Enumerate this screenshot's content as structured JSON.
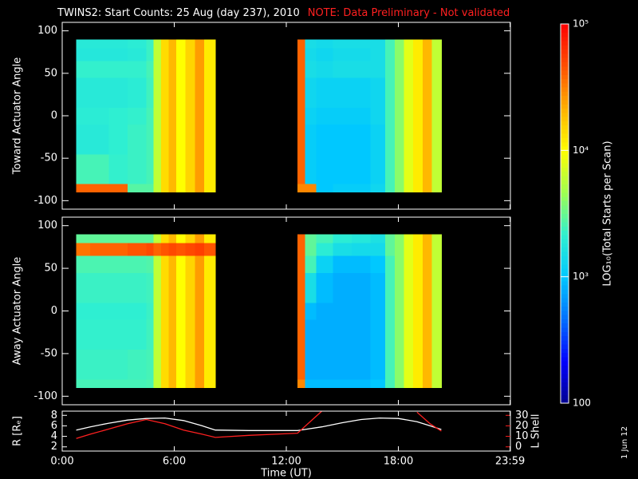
{
  "chart_data": [
    {
      "type": "heatmap",
      "title": "TWINS2: Start Counts: 25 Aug (day 237), 2010",
      "note": "NOTE: Data Preliminary - Not validated",
      "ylabel": "Toward Actuator Angle",
      "x_bins": [
        0.75,
        1.5,
        2.5,
        3.5,
        4.5,
        4.9,
        5.3,
        5.7,
        6.1,
        6.6,
        7.1,
        7.6,
        8.2,
        12.6,
        13.0,
        13.6,
        14.5,
        15.5,
        16.5,
        17.3,
        17.8,
        18.3,
        18.8,
        19.3,
        19.8,
        20.3
      ],
      "y_bins": [
        -90,
        -80,
        -45,
        -10,
        10,
        45,
        65,
        80,
        90
      ],
      "values": [
        [
          40000,
          40000,
          40000,
          2800,
          2800,
          6000,
          14000,
          20000,
          10000,
          15000,
          25000,
          12000,
          null,
          30000,
          30000,
          1000,
          1100,
          1100,
          1300,
          2500,
          4000,
          8000,
          12000,
          20000,
          6000
        ],
        [
          2500,
          2500,
          2200,
          2300,
          2500,
          6000,
          14000,
          20000,
          10000,
          15000,
          25000,
          12000,
          null,
          40000,
          1100,
          1000,
          1000,
          1000,
          1200,
          2500,
          4000,
          8000,
          12000,
          20000,
          6000
        ],
        [
          1900,
          1900,
          2100,
          2300,
          2500,
          6000,
          14000,
          20000,
          10000,
          15000,
          25000,
          12000,
          null,
          40000,
          1100,
          1000,
          1000,
          1000,
          1200,
          2500,
          4000,
          8000,
          12000,
          20000,
          6000
        ],
        [
          2000,
          2000,
          2100,
          2200,
          2500,
          6000,
          14000,
          20000,
          10000,
          15000,
          25000,
          12000,
          null,
          40000,
          1200,
          1100,
          1100,
          1100,
          1300,
          2500,
          4000,
          8000,
          12000,
          20000,
          6000
        ],
        [
          1900,
          1900,
          1900,
          2000,
          2400,
          6000,
          14000,
          20000,
          10000,
          15000,
          25000,
          12000,
          null,
          40000,
          1300,
          1200,
          1200,
          1200,
          1300,
          2500,
          4000,
          8000,
          12000,
          20000,
          6000
        ],
        [
          2200,
          2200,
          2200,
          2200,
          2500,
          6000,
          14000,
          20000,
          10000,
          15000,
          25000,
          12000,
          null,
          40000,
          1500,
          1400,
          1500,
          1500,
          1500,
          2500,
          4000,
          8000,
          12000,
          20000,
          6000
        ],
        [
          1800,
          1800,
          1800,
          1900,
          2300,
          6000,
          14000,
          20000,
          10000,
          15000,
          25000,
          12000,
          null,
          40000,
          1400,
          1300,
          1400,
          1400,
          1500,
          2500,
          4000,
          8000,
          12000,
          20000,
          6000
        ],
        [
          1900,
          1900,
          1900,
          2000,
          2300,
          6000,
          14000,
          20000,
          10000,
          15000,
          25000,
          12000,
          null,
          40000,
          1500,
          1400,
          1500,
          1500,
          1500,
          2500,
          4000,
          8000,
          12000,
          20000,
          6000
        ]
      ],
      "ylim": [
        -110,
        110
      ],
      "yticks": [
        -100,
        -50,
        0,
        50,
        100
      ],
      "colorbar": {
        "label": "LOG₁₀(Total Starts per Scan)",
        "zlim": [
          100,
          100000
        ],
        "log": true,
        "ticks": [
          {
            "value": 100000,
            "label": "10⁵"
          },
          {
            "value": 10000,
            "label": "10⁴"
          },
          {
            "value": 1000,
            "label": "10³"
          },
          100
        ],
        "colormap": [
          "#000090",
          "#0000ff",
          "#0070ff",
          "#00c8ff",
          "#30f0d0",
          "#a0ff50",
          "#ffff00",
          "#ffb000",
          "#ff5000",
          "#ff0000"
        ]
      }
    },
    {
      "type": "heatmap",
      "ylabel": "Away Actuator Angle",
      "x_bins": [
        0.75,
        1.5,
        2.5,
        3.5,
        4.5,
        4.9,
        5.3,
        5.7,
        6.1,
        6.6,
        7.1,
        7.6,
        8.2,
        12.6,
        13.0,
        13.6,
        14.5,
        15.5,
        16.5,
        17.3,
        17.8,
        18.3,
        18.8,
        19.3,
        19.8,
        20.3
      ],
      "y_bins": [
        -90,
        -80,
        -45,
        -10,
        10,
        45,
        65,
        80,
        90
      ],
      "values": [
        [
          2500,
          2500,
          2500,
          2500,
          2600,
          6000,
          14000,
          20000,
          10000,
          15000,
          25000,
          12000,
          null,
          30000,
          900,
          900,
          900,
          900,
          1000,
          2500,
          4000,
          8000,
          12000,
          20000,
          6000
        ],
        [
          2300,
          2300,
          2300,
          2400,
          2500,
          6000,
          14000,
          20000,
          10000,
          15000,
          25000,
          12000,
          null,
          40000,
          800,
          800,
          800,
          800,
          900,
          2500,
          4000,
          8000,
          12000,
          20000,
          6000
        ],
        [
          2200,
          2200,
          2200,
          2200,
          2400,
          6000,
          14000,
          20000,
          10000,
          15000,
          25000,
          12000,
          null,
          40000,
          800,
          800,
          800,
          800,
          900,
          2500,
          4000,
          8000,
          12000,
          20000,
          6000
        ],
        [
          2100,
          2100,
          2100,
          2100,
          2300,
          6000,
          14000,
          20000,
          10000,
          15000,
          25000,
          12000,
          null,
          40000,
          900,
          800,
          800,
          800,
          900,
          2500,
          4000,
          8000,
          12000,
          20000,
          6000
        ],
        [
          2300,
          2300,
          2300,
          2300,
          2400,
          6000,
          14000,
          20000,
          10000,
          15000,
          25000,
          12000,
          null,
          40000,
          1500,
          900,
          800,
          800,
          900,
          2500,
          4000,
          8000,
          12000,
          20000,
          6000
        ],
        [
          2600,
          2600,
          2600,
          2600,
          2700,
          6000,
          14000,
          20000,
          10000,
          15000,
          25000,
          12000,
          null,
          40000,
          2500,
          1200,
          900,
          900,
          1000,
          2500,
          4000,
          8000,
          12000,
          20000,
          6000
        ],
        [
          35000,
          40000,
          40000,
          45000,
          50000,
          40000,
          45000,
          50000,
          45000,
          50000,
          55000,
          45000,
          null,
          40000,
          3000,
          2000,
          1500,
          1400,
          1400,
          3000,
          4000,
          8000,
          12000,
          20000,
          6000
        ],
        [
          3000,
          3000,
          3000,
          3000,
          3000,
          6000,
          14000,
          20000,
          10000,
          15000,
          25000,
          12000,
          null,
          40000,
          3000,
          2500,
          2000,
          1800,
          1600,
          3000,
          4000,
          8000,
          12000,
          20000,
          6000
        ]
      ],
      "ylim": [
        -110,
        110
      ],
      "yticks": [
        -100,
        -50,
        0,
        50,
        100
      ]
    },
    {
      "type": "line",
      "xlabel": "Time (UT)",
      "x": [
        0.75,
        1.5,
        2.5,
        3.5,
        4.5,
        5.5,
        6.5,
        7.5,
        8.2,
        10,
        12.6,
        13.9,
        15,
        16,
        17,
        18,
        19,
        19.7,
        20.3
      ],
      "series": [
        {
          "name": "R [Rₑ]",
          "color": "#ffffff",
          "values": [
            5.2,
            5.8,
            6.5,
            7.1,
            7.4,
            7.5,
            7.0,
            6.0,
            5.2,
            5.1,
            5.1,
            5.8,
            6.6,
            7.2,
            7.5,
            7.4,
            6.8,
            6.0,
            5.3
          ]
        },
        {
          "name": "L Shell",
          "color": "#ff2020",
          "axis": "y2",
          "values": [
            8,
            12,
            17,
            22,
            26,
            22,
            16,
            12,
            9,
            11,
            13,
            34,
            null,
            null,
            null,
            null,
            33,
            22,
            15
          ]
        }
      ],
      "xlim": [
        0,
        24
      ],
      "xticks": [
        {
          "value": 0,
          "label": "0:00"
        },
        {
          "value": 6,
          "label": "6:00"
        },
        {
          "value": 12,
          "label": "12:00"
        },
        {
          "value": 18,
          "label": "18:00"
        },
        {
          "value": 23.983,
          "label": "23:59"
        }
      ],
      "ylim": [
        1.2,
        8.8
      ],
      "yticks": [
        2,
        4,
        6,
        8
      ],
      "y2lim": [
        -4,
        34
      ],
      "y2ticks": [
        0,
        10,
        20,
        30
      ]
    }
  ],
  "footer": "1 Jun 12"
}
